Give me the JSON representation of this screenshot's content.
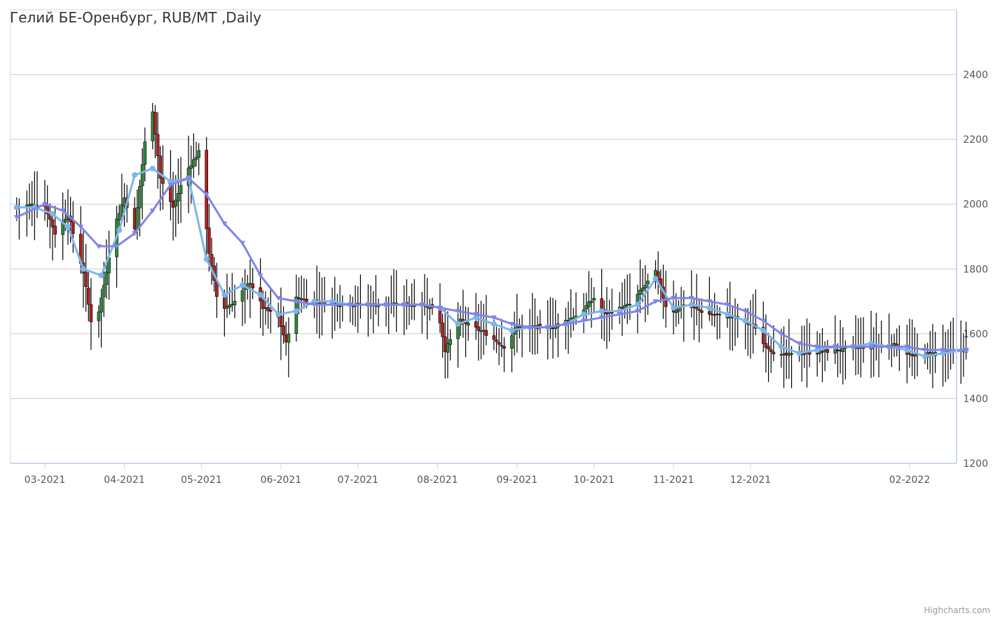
{
  "chart_data": {
    "type": "candlestick",
    "title": "Гелий БЕ-Оренбург, RUB/MT ,Daily",
    "credits": "Highcharts.com",
    "x_tick_labels": [
      "03-2021",
      "04-2021",
      "05-2021",
      "06-2021",
      "07-2021",
      "08-2021",
      "09-2021",
      "10-2021",
      "11-2021",
      "12-2021",
      "02-2022"
    ],
    "x_tick_dates": [
      "2021-03-01",
      "2021-04-01",
      "2021-05-01",
      "2021-06-01",
      "2021-07-01",
      "2021-08-01",
      "2021-09-01",
      "2021-10-01",
      "2021-11-01",
      "2021-12-01",
      "2022-02-01"
    ],
    "x_range": [
      "2021-02-18",
      "2022-02-23"
    ],
    "y_tick_labels": [
      "1200",
      "1400",
      "1600",
      "1800",
      "2000",
      "2200",
      "2400"
    ],
    "ylim": [
      1200,
      2600
    ],
    "grid": true,
    "y_axis_side": "right",
    "colors": {
      "up": "#2e8b3a",
      "down": "#b22222",
      "wick": "#000000",
      "ma_short": "#7cb5ec",
      "ma_long": "#8085e9",
      "grid": "#cccccc",
      "axis": "#ccd6eb"
    },
    "candle_series": {
      "name": "",
      "anchors_close": [
        [
          "2021-02-18",
          1990
        ],
        [
          "2021-02-25",
          2000
        ],
        [
          "2021-03-01",
          1995
        ],
        [
          "2021-03-05",
          1910
        ],
        [
          "2021-03-10",
          1970
        ],
        [
          "2021-03-16",
          1790
        ],
        [
          "2021-03-20",
          1590
        ],
        [
          "2021-03-24",
          1750
        ],
        [
          "2021-03-28",
          1930
        ],
        [
          "2021-04-01",
          2020
        ],
        [
          "2021-04-05",
          1920
        ],
        [
          "2021-04-09",
          2190
        ],
        [
          "2021-04-12",
          2290
        ],
        [
          "2021-04-15",
          2080
        ],
        [
          "2021-04-20",
          1990
        ],
        [
          "2021-04-25",
          2100
        ],
        [
          "2021-04-30",
          2160
        ],
        [
          "2021-05-04",
          1850
        ],
        [
          "2021-05-08",
          1670
        ],
        [
          "2021-05-14",
          1700
        ],
        [
          "2021-05-20",
          1760
        ],
        [
          "2021-05-25",
          1680
        ],
        [
          "2021-05-31",
          1650
        ],
        [
          "2021-06-03",
          1570
        ],
        [
          "2021-06-07",
          1710
        ],
        [
          "2021-06-15",
          1700
        ],
        [
          "2021-06-25",
          1690
        ],
        [
          "2021-07-10",
          1690
        ],
        [
          "2021-07-25",
          1690
        ],
        [
          "2021-08-01",
          1680
        ],
        [
          "2021-08-04",
          1550
        ],
        [
          "2021-08-10",
          1640
        ],
        [
          "2021-08-20",
          1600
        ],
        [
          "2021-08-27",
          1560
        ],
        [
          "2021-09-01",
          1620
        ],
        [
          "2021-09-15",
          1620
        ],
        [
          "2021-09-25",
          1660
        ],
        [
          "2021-10-01",
          1710
        ],
        [
          "2021-10-05",
          1660
        ],
        [
          "2021-10-15",
          1690
        ],
        [
          "2021-10-25",
          1790
        ],
        [
          "2021-10-30",
          1660
        ],
        [
          "2021-11-05",
          1690
        ],
        [
          "2021-11-15",
          1660
        ],
        [
          "2021-11-25",
          1650
        ],
        [
          "2021-12-03",
          1620
        ],
        [
          "2021-12-06",
          1570
        ],
        [
          "2021-12-12",
          1530
        ],
        [
          "2021-12-22",
          1540
        ],
        [
          "2022-01-05",
          1550
        ],
        [
          "2022-01-15",
          1560
        ],
        [
          "2022-01-25",
          1570
        ],
        [
          "2022-02-02",
          1530
        ],
        [
          "2022-02-10",
          1540
        ],
        [
          "2022-02-23",
          1550
        ]
      ]
    },
    "series": [
      {
        "name": "",
        "color": "#7cb5ec",
        "marker": "circle",
        "points": [
          [
            "2021-02-18",
            1990
          ],
          [
            "2021-02-25",
            1990
          ],
          [
            "2021-03-04",
            1970
          ],
          [
            "2021-03-10",
            1930
          ],
          [
            "2021-03-16",
            1800
          ],
          [
            "2021-03-23",
            1780
          ],
          [
            "2021-03-30",
            1920
          ],
          [
            "2021-04-05",
            2090
          ],
          [
            "2021-04-12",
            2110
          ],
          [
            "2021-04-19",
            2070
          ],
          [
            "2021-04-26",
            2080
          ],
          [
            "2021-05-03",
            1830
          ],
          [
            "2021-05-10",
            1720
          ],
          [
            "2021-05-17",
            1750
          ],
          [
            "2021-05-24",
            1720
          ],
          [
            "2021-05-31",
            1660
          ],
          [
            "2021-06-07",
            1670
          ],
          [
            "2021-06-14",
            1700
          ],
          [
            "2021-06-21",
            1700
          ],
          [
            "2021-06-28",
            1690
          ],
          [
            "2021-07-05",
            1690
          ],
          [
            "2021-07-12",
            1690
          ],
          [
            "2021-07-19",
            1690
          ],
          [
            "2021-07-26",
            1690
          ],
          [
            "2021-08-02",
            1680
          ],
          [
            "2021-08-09",
            1630
          ],
          [
            "2021-08-16",
            1650
          ],
          [
            "2021-08-23",
            1630
          ],
          [
            "2021-08-30",
            1610
          ],
          [
            "2021-09-06",
            1620
          ],
          [
            "2021-09-13",
            1620
          ],
          [
            "2021-09-20",
            1630
          ],
          [
            "2021-09-27",
            1660
          ],
          [
            "2021-10-04",
            1670
          ],
          [
            "2021-10-11",
            1670
          ],
          [
            "2021-10-18",
            1690
          ],
          [
            "2021-10-25",
            1770
          ],
          [
            "2021-11-01",
            1680
          ],
          [
            "2021-11-08",
            1690
          ],
          [
            "2021-11-15",
            1680
          ],
          [
            "2021-11-22",
            1660
          ],
          [
            "2021-11-29",
            1640
          ],
          [
            "2021-12-06",
            1610
          ],
          [
            "2021-12-13",
            1560
          ],
          [
            "2021-12-20",
            1540
          ],
          [
            "2021-12-27",
            1550
          ],
          [
            "2022-01-03",
            1560
          ],
          [
            "2022-01-10",
            1560
          ],
          [
            "2022-01-17",
            1570
          ],
          [
            "2022-01-24",
            1560
          ],
          [
            "2022-01-31",
            1550
          ],
          [
            "2022-02-07",
            1530
          ],
          [
            "2022-02-14",
            1540
          ],
          [
            "2022-02-23",
            1550
          ]
        ]
      },
      {
        "name": "",
        "color": "#8085e9",
        "marker": "triangle-down",
        "points": [
          [
            "2021-02-18",
            1960
          ],
          [
            "2021-03-01",
            2000
          ],
          [
            "2021-03-08",
            1980
          ],
          [
            "2021-03-15",
            1930
          ],
          [
            "2021-03-22",
            1870
          ],
          [
            "2021-03-29",
            1870
          ],
          [
            "2021-04-05",
            1910
          ],
          [
            "2021-04-12",
            1980
          ],
          [
            "2021-04-19",
            2060
          ],
          [
            "2021-04-26",
            2080
          ],
          [
            "2021-05-03",
            2030
          ],
          [
            "2021-05-10",
            1940
          ],
          [
            "2021-05-17",
            1880
          ],
          [
            "2021-05-24",
            1780
          ],
          [
            "2021-05-31",
            1710
          ],
          [
            "2021-06-07",
            1700
          ],
          [
            "2021-06-14",
            1690
          ],
          [
            "2021-06-21",
            1690
          ],
          [
            "2021-06-28",
            1690
          ],
          [
            "2021-07-05",
            1690
          ],
          [
            "2021-07-12",
            1690
          ],
          [
            "2021-07-19",
            1690
          ],
          [
            "2021-07-26",
            1690
          ],
          [
            "2021-08-02",
            1680
          ],
          [
            "2021-08-09",
            1670
          ],
          [
            "2021-08-16",
            1660
          ],
          [
            "2021-08-23",
            1650
          ],
          [
            "2021-08-30",
            1630
          ],
          [
            "2021-09-06",
            1620
          ],
          [
            "2021-09-13",
            1620
          ],
          [
            "2021-09-20",
            1630
          ],
          [
            "2021-09-27",
            1640
          ],
          [
            "2021-10-04",
            1650
          ],
          [
            "2021-10-11",
            1660
          ],
          [
            "2021-10-18",
            1670
          ],
          [
            "2021-10-25",
            1700
          ],
          [
            "2021-11-01",
            1710
          ],
          [
            "2021-11-08",
            1710
          ],
          [
            "2021-11-15",
            1700
          ],
          [
            "2021-11-22",
            1690
          ],
          [
            "2021-11-29",
            1670
          ],
          [
            "2021-12-06",
            1640
          ],
          [
            "2021-12-13",
            1600
          ],
          [
            "2021-12-20",
            1570
          ],
          [
            "2021-12-27",
            1560
          ],
          [
            "2022-01-03",
            1560
          ],
          [
            "2022-01-10",
            1560
          ],
          [
            "2022-01-17",
            1560
          ],
          [
            "2022-01-24",
            1560
          ],
          [
            "2022-01-31",
            1560
          ],
          [
            "2022-02-07",
            1550
          ],
          [
            "2022-02-14",
            1550
          ],
          [
            "2022-02-23",
            1550
          ]
        ]
      }
    ]
  }
}
